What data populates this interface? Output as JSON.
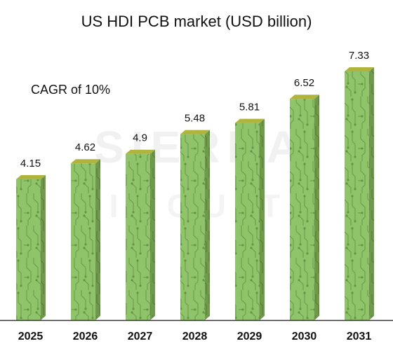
{
  "chart_data": {
    "type": "bar",
    "title": "US HDI PCB market (USD billion)",
    "annotation": "CAGR of 10%",
    "categories": [
      "2025",
      "2026",
      "2027",
      "2028",
      "2029",
      "2030",
      "2031"
    ],
    "values": [
      4.15,
      4.62,
      4.9,
      5.48,
      5.81,
      6.52,
      7.33
    ],
    "value_labels": [
      "4.15",
      "4.62",
      "4.9",
      "5.48",
      "5.81",
      "6.52",
      "7.33"
    ],
    "xlabel": "",
    "ylabel": "",
    "ylim": [
      0,
      7.33
    ],
    "grid": false,
    "bar_colors": {
      "front": "#8fc46a",
      "side": "#6f9a4c",
      "top": "#b1b33f",
      "trace": "#5d8a3e"
    },
    "axis_color": "#333333"
  },
  "watermark": {
    "line1": "SIERRA",
    "line2": "CIRCUITS"
  }
}
